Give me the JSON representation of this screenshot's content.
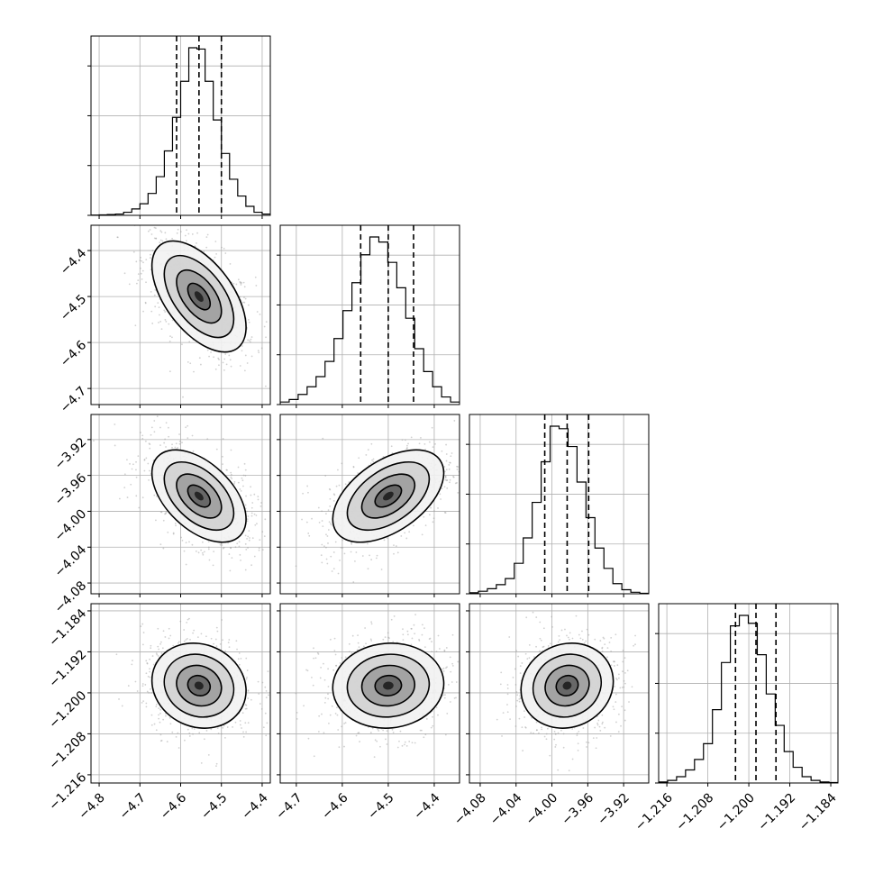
{
  "chart_data": {
    "type": "corner",
    "title": "",
    "show_grid": true,
    "parameters": [
      {
        "xlabel": "",
        "range": [
          -4.82,
          -4.38
        ],
        "ticks": [
          -4.8,
          -4.7,
          -4.6,
          -4.5,
          -4.4
        ],
        "tick_labels": [
          "−4.8",
          "−4.7",
          "−4.6",
          "−4.5",
          "−4.4"
        ],
        "quantiles": [
          -4.61,
          -4.555,
          -4.5
        ],
        "hist_bin_edges": [
          -4.82,
          -4.8,
          -4.78,
          -4.76,
          -4.74,
          -4.72,
          -4.7,
          -4.68,
          -4.66,
          -4.64,
          -4.62,
          -4.6,
          -4.58,
          -4.56,
          -4.54,
          -4.52,
          -4.5,
          -4.48,
          -4.46,
          -4.44,
          -4.42,
          -4.4,
          -4.38
        ],
        "hist_counts": [
          1,
          2,
          3,
          5,
          12,
          25,
          45,
          85,
          150,
          250,
          380,
          520,
          650,
          645,
          520,
          370,
          240,
          140,
          75,
          35,
          12,
          5
        ]
      },
      {
        "xlabel": "",
        "range": [
          -4.735,
          -4.345
        ],
        "ticks": [
          -4.7,
          -4.6,
          -4.5,
          -4.4
        ],
        "tick_labels": [
          "−4.7",
          "−4.6",
          "−4.5",
          "−4.4"
        ],
        "quantiles": [
          -4.56,
          -4.5,
          -4.445
        ],
        "hist_bin_edges": [
          -4.735,
          -4.7155,
          -4.696,
          -4.6765,
          -4.657,
          -4.6375,
          -4.618,
          -4.5985,
          -4.579,
          -4.5595,
          -4.54,
          -4.5205,
          -4.501,
          -4.4815,
          -4.462,
          -4.4425,
          -4.423,
          -4.4035,
          -4.384,
          -4.3645,
          -4.345
        ],
        "hist_counts": [
          5,
          10,
          20,
          35,
          55,
          85,
          130,
          185,
          240,
          295,
          330,
          320,
          280,
          230,
          170,
          110,
          65,
          35,
          15,
          5
        ]
      },
      {
        "xlabel": "",
        "range": [
          -4.092,
          -3.892
        ],
        "ticks": [
          -4.08,
          -4.04,
          -4.0,
          -3.96,
          -3.92
        ],
        "tick_labels": [
          "−4.08",
          "−4.04",
          "−4.00",
          "−3.96",
          "−3.92"
        ],
        "quantiles": [
          -4.008,
          -3.983,
          -3.959
        ],
        "hist_bin_edges": [
          -4.092,
          -4.082,
          -4.072,
          -4.062,
          -4.052,
          -4.042,
          -4.032,
          -4.022,
          -4.012,
          -4.002,
          -3.992,
          -3.982,
          -3.972,
          -3.962,
          -3.952,
          -3.942,
          -3.932,
          -3.922,
          -3.912,
          -3.902,
          -3.892
        ],
        "hist_counts": [
          2,
          5,
          10,
          18,
          30,
          60,
          110,
          180,
          260,
          330,
          325,
          290,
          220,
          150,
          90,
          50,
          20,
          8,
          3,
          1
        ]
      },
      {
        "xlabel": "",
        "range": [
          -1.2176,
          -1.1826
        ],
        "ticks": [
          -1.216,
          -1.208,
          -1.2,
          -1.192,
          -1.184
        ],
        "tick_labels": [
          "−1.216",
          "−1.208",
          "−1.200",
          "−1.192",
          "−1.184"
        ],
        "quantiles": [
          -1.2026,
          -1.1986,
          -1.1947
        ],
        "hist_bin_edges": [
          -1.2176,
          -1.21585,
          -1.2141,
          -1.21235,
          -1.2106,
          -1.20885,
          -1.2071,
          -1.20535,
          -1.2036,
          -1.20185,
          -1.2001,
          -1.19835,
          -1.1966,
          -1.19485,
          -1.1931,
          -1.19135,
          -1.1896,
          -1.18785,
          -1.1861,
          -1.18435,
          -1.1826
        ],
        "hist_counts": [
          2,
          5,
          12,
          25,
          45,
          75,
          140,
          230,
          300,
          320,
          305,
          245,
          170,
          110,
          60,
          30,
          12,
          5,
          2,
          1
        ]
      }
    ],
    "row_tick_labels": [
      [],
      [
        "−4.4",
        "−4.5",
        "−4.6",
        "−4.7"
      ],
      [
        "−3.92",
        "−3.96",
        "−4.00",
        "−4.04",
        "−4.08"
      ],
      [
        "−1.184",
        "−1.192",
        "−1.200",
        "−1.208",
        "−1.216"
      ]
    ],
    "correlations": {
      "1-0": -0.55,
      "2-0": -0.5,
      "2-1": 0.5,
      "3-0": -0.12,
      "3-1": 0.05,
      "3-2": 0.1
    },
    "contour_levels": 3,
    "colors": {
      "hist_line": "#000000",
      "quantile_line": "#000000",
      "grid": "#b0b0b0",
      "scatter": "#9a9a9a",
      "density_dark": "#333333"
    }
  }
}
